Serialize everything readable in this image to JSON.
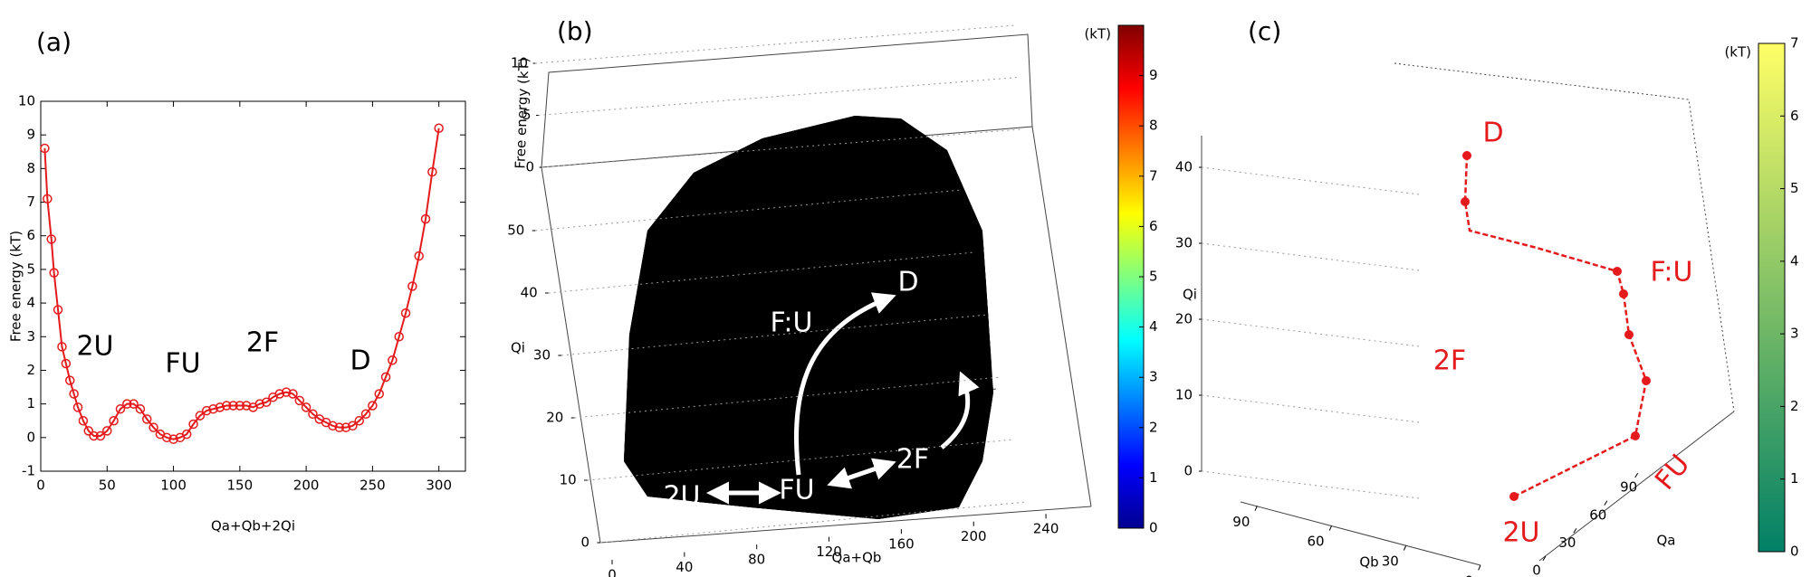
{
  "chart_data": [
    {
      "type": "line",
      "panel": "(a)",
      "x": [
        3,
        5,
        8,
        10,
        13,
        16,
        19,
        22,
        25,
        28,
        32,
        36,
        40,
        45,
        50,
        55,
        60,
        65,
        70,
        75,
        80,
        85,
        90,
        95,
        100,
        105,
        110,
        115,
        120,
        125,
        130,
        135,
        140,
        145,
        150,
        155,
        160,
        165,
        170,
        175,
        180,
        185,
        190,
        195,
        200,
        205,
        210,
        215,
        220,
        225,
        230,
        235,
        240,
        245,
        250,
        255,
        260,
        265,
        270,
        275,
        280,
        285,
        290,
        295,
        300
      ],
      "values": [
        8.6,
        7.1,
        5.9,
        4.9,
        3.8,
        2.7,
        2.2,
        1.7,
        1.3,
        0.9,
        0.5,
        0.2,
        0.05,
        0.05,
        0.2,
        0.5,
        0.85,
        1.0,
        1.0,
        0.85,
        0.55,
        0.3,
        0.1,
        0.0,
        -0.05,
        0.0,
        0.1,
        0.4,
        0.65,
        0.8,
        0.85,
        0.9,
        0.95,
        0.95,
        0.95,
        0.95,
        0.9,
        1.0,
        1.05,
        1.2,
        1.3,
        1.35,
        1.3,
        1.1,
        0.9,
        0.7,
        0.55,
        0.45,
        0.35,
        0.3,
        0.3,
        0.35,
        0.5,
        0.7,
        0.95,
        1.3,
        1.8,
        2.3,
        3.0,
        3.7,
        4.5,
        5.4,
        6.5,
        7.9,
        9.2
      ],
      "color": "#e41a1c",
      "marker": "circle",
      "xlim": [
        0,
        320
      ],
      "xticks": [
        0,
        50,
        100,
        150,
        200,
        250,
        300
      ],
      "ylim": [
        -1,
        10
      ],
      "yticks": [
        -1,
        0,
        1,
        2,
        3,
        4,
        5,
        6,
        7,
        8,
        9,
        10
      ],
      "xlabel": "Qa+Qb+2Qi",
      "ylabel": "Free energy (kT)",
      "annotations": [
        "2U",
        "FU",
        "2F",
        "D"
      ]
    },
    {
      "type": "surface",
      "panel": "(b)",
      "xlabel": "Qa+Qb",
      "ylabel": "Qi",
      "zlabel": "Free energy (kT)",
      "xlim": [
        0,
        260
      ],
      "xticks": [
        0,
        40,
        80,
        120,
        160,
        200,
        240
      ],
      "ylim": [
        0,
        60
      ],
      "yticks": [
        0,
        10,
        20,
        30,
        40,
        50
      ],
      "zlim": [
        0,
        10
      ],
      "zticks": [
        0,
        5,
        10
      ],
      "grid": true,
      "colormap": "jet",
      "clim": [
        0,
        10
      ],
      "colorbar_ticks": [
        0,
        1,
        2,
        3,
        4,
        5,
        6,
        7,
        8,
        9
      ],
      "colorbar_label": "(kT)",
      "annotations": [
        "D",
        "F:U",
        "FU",
        "2U",
        "2F"
      ]
    },
    {
      "type": "contour",
      "panel": "(c)",
      "xlabel": "Qb",
      "ylabel": "Qa",
      "zlabel": "Qi",
      "xlim": [
        0,
        100
      ],
      "xticks": [
        90,
        60,
        30,
        0
      ],
      "ylim": [
        0,
        100
      ],
      "yticks": [
        0,
        30,
        60,
        90
      ],
      "zlim": [
        0,
        45
      ],
      "zticks": [
        0,
        10,
        20,
        30,
        40
      ],
      "grid": true,
      "colormap": "summer",
      "clim": [
        0,
        7
      ],
      "colorbar_ticks": [
        0,
        1,
        2,
        3,
        4,
        5,
        6,
        7
      ],
      "colorbar_label": "(kT)",
      "annotations": [
        "D",
        "F:U",
        "2F",
        "FU",
        "2U"
      ],
      "annotation_color": "#e41a1c"
    }
  ]
}
